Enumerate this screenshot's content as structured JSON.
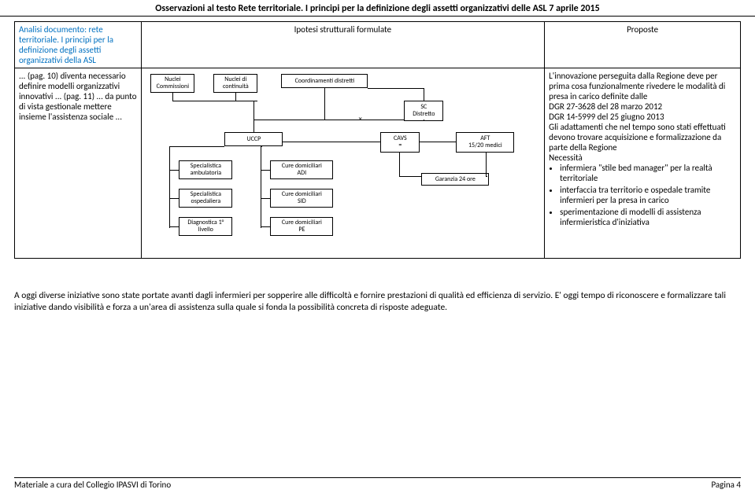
{
  "header": {
    "title": "Osservazioni al testo Rete territoriale. I principi per la definizione degli assetti organizzativi delle ASL 7 aprile 2015"
  },
  "table": {
    "col1_header": "Analisi documento: rete territoriale. I principi per la definizione degli assetti organizzativi della ASL",
    "col2_header": "Ipotesi strutturali formulate",
    "col3_header": "Proposte",
    "col1_body": "... (pag. 10) diventa necessario definire modelli organizzativi innovativi ... (pag. 11) ... da punto di vista gestionale mettere insieme l'assistenza sociale ...",
    "col3_body_intro": "L'innovazione perseguita dalla Regione deve per prima cosa funzionalmente rivedere le modalità di presa in carico definite dalle",
    "col3_dgr1": "DGR 27-3628 del 28 marzo 2012",
    "col3_dgr2": "DGR 14-5999 del 25 giugno 2013",
    "col3_adatt": "Gli adattamenti che nel tempo sono stati effettuati devono trovare acquisizione e formalizzazione da parte della Regione",
    "col3_necessita": "Necessità",
    "col3_bullets": [
      "infermiera \"stile bed manager\" per la realtà territoriale",
      "interfaccia tra territorio e ospedale tramite infermieri per la presa in carico",
      "sperimentazione di modelli di assistenza infermieristica d'iniziativa"
    ]
  },
  "diagram": {
    "nodes": {
      "nuclei_comm": "Nuclei\nCommissioni",
      "nuclei_cont": "Nuclei di\ncontinuità",
      "coord_distr": "Coordinamenti distretti",
      "sc_distr": "SC\nDistretto",
      "uccp": "UCCP",
      "cavs": "CAVS\n=",
      "aft": "AFT\n15/20 medici",
      "spec_amb": "Specialistica\nambulatoria",
      "spec_osp": "Specialistica\nospedaliera",
      "diag_liv": "Diagnostica 1°\nlivello",
      "cure_adi": "Cure domiciliari\nADI",
      "cure_sid": "Cure domiciliari\nSID",
      "cure_pe": "Cure domiciliari\nPE",
      "garanzia": "Garanzia 24 ore"
    }
  },
  "foot_paragraph": "A oggi diverse iniziative sono state portate avanti dagli infermieri per sopperire alle difficoltà e fornire prestazioni di qualità ed efficienza di servizio.  E' oggi tempo di riconoscere e formalizzare tali  iniziative dando visibilità e forza a un'area di assistenza sulla quale si fonda la possibilità concreta di risposte adeguate.",
  "footer": {
    "left": "Materiale a cura del Collegio IPASVI di Torino",
    "right": "Pagina 4"
  }
}
